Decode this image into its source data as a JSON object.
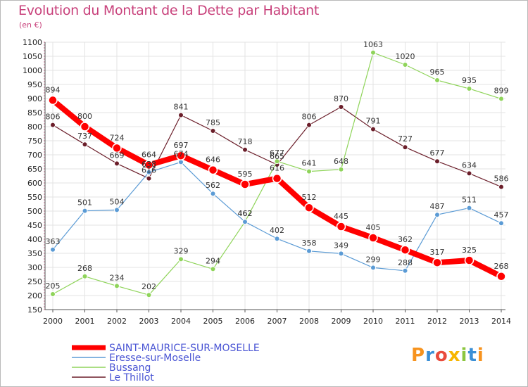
{
  "title": "Evolution du Montant de la Dette par Habitant",
  "subtitle": "(en €)",
  "logo": {
    "text": "Proxiti",
    "colors": [
      "#f7931e",
      "#3a8fd6",
      "#e94b3c",
      "#f7b500",
      "#8cc63f",
      "#3a8fd6",
      "#f7931e"
    ]
  },
  "chart_data": {
    "type": "line",
    "x": [
      2000,
      2001,
      2002,
      2003,
      2004,
      2005,
      2006,
      2007,
      2008,
      2009,
      2010,
      2011,
      2012,
      2013,
      2014
    ],
    "ylim": [
      150,
      1100
    ],
    "yticks": [
      150,
      200,
      250,
      300,
      350,
      400,
      450,
      500,
      550,
      600,
      650,
      700,
      750,
      800,
      850,
      900,
      950,
      1000,
      1050,
      1100
    ],
    "grid": true,
    "legend_position": "bottom-left",
    "series": [
      {
        "name": "Le Thillot",
        "color": "#6b1e2a",
        "width": 1.2,
        "marker": 3.5,
        "values": [
          806,
          737,
          669,
          616,
          841,
          785,
          718,
          665,
          806,
          870,
          791,
          727,
          677,
          634,
          586
        ]
      },
      {
        "name": "Bussang",
        "color": "#8fd45a",
        "width": 1.2,
        "marker": 3.5,
        "values": [
          205,
          268,
          234,
          202,
          329,
          294,
          462,
          677,
          641,
          648,
          1063,
          1020,
          965,
          935,
          899
        ]
      },
      {
        "name": "Eresse-sur-Moselle",
        "color": "#5b9bd5",
        "width": 1.2,
        "marker": 3.5,
        "values": [
          363,
          501,
          504,
          638,
          674,
          562,
          462,
          402,
          358,
          349,
          299,
          288,
          487,
          511,
          457
        ]
      },
      {
        "name": "SAINT-MAURICE-SUR-MOSELLE",
        "color": "#ff0000",
        "width": 8,
        "marker": 6,
        "values": [
          894,
          800,
          724,
          664,
          697,
          646,
          595,
          616,
          512,
          445,
          405,
          362,
          317,
          325,
          268
        ]
      }
    ],
    "legend_order": [
      "SAINT-MAURICE-SUR-MOSELLE",
      "Eresse-sur-Moselle",
      "Bussang",
      "Le Thillot"
    ]
  }
}
